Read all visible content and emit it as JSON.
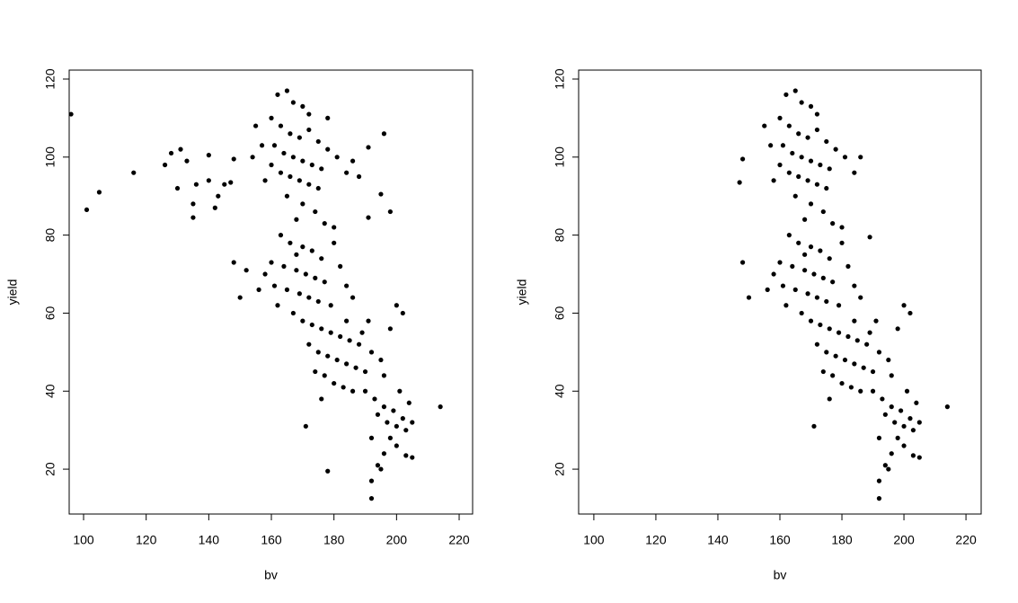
{
  "chart_data": [
    {
      "type": "scatter",
      "xlabel": "bv",
      "ylabel": "yield",
      "color": "#000000",
      "xlim": [
        95.4,
        224.3
      ],
      "ylim": [
        8.5,
        122.3
      ],
      "xticks": [
        100,
        120,
        140,
        160,
        180,
        200,
        220
      ],
      "yticks": [
        20,
        40,
        60,
        80,
        100,
        120
      ],
      "x": [
        96,
        101,
        105,
        116,
        126,
        128,
        130,
        131,
        133,
        135,
        135,
        136,
        140,
        140,
        142,
        143,
        145,
        147,
        148,
        148,
        150,
        152,
        154,
        214,
        192,
        192,
        178,
        194,
        195,
        196,
        198,
        195,
        191,
        191,
        162,
        165,
        167,
        170,
        172,
        160,
        163,
        166,
        169,
        172,
        175,
        178,
        161,
        164,
        167,
        170,
        173,
        176,
        163,
        166,
        169,
        172,
        175,
        160,
        181,
        184,
        158,
        165,
        170,
        174,
        168,
        177,
        180,
        186,
        188,
        178,
        155,
        157,
        163,
        166,
        170,
        173,
        176,
        160,
        164,
        168,
        171,
        174,
        177,
        161,
        165,
        169,
        172,
        175,
        179,
        156,
        158,
        182,
        167,
        170,
        173,
        184,
        186,
        162,
        168,
        180,
        176,
        179,
        182,
        185,
        188,
        172,
        175,
        178,
        181,
        184,
        187,
        190,
        174,
        177,
        180,
        183,
        186,
        189,
        192,
        195,
        198,
        200,
        202,
        176,
        171,
        184,
        191,
        196,
        190,
        193,
        196,
        199,
        202,
        194,
        197,
        200,
        203,
        205,
        198,
        200,
        192,
        204,
        201,
        196,
        203,
        205
      ],
      "y": [
        111,
        86.5,
        91,
        96,
        98,
        101,
        92,
        102,
        99,
        84.5,
        88,
        93,
        100.5,
        94,
        87,
        90,
        93,
        93.5,
        99.5,
        73,
        64,
        71,
        100,
        36,
        12.5,
        17,
        19.5,
        21,
        20,
        106,
        86,
        90.5,
        102.5,
        84.5,
        116,
        117,
        114,
        113,
        111,
        110,
        108,
        106,
        105,
        107,
        104,
        102,
        103,
        101,
        100,
        99,
        98,
        97,
        96,
        95,
        94,
        93,
        92,
        98,
        100,
        96,
        94,
        90,
        88,
        86,
        84,
        83,
        82,
        99,
        95,
        110,
        108,
        103,
        80,
        78,
        77,
        76,
        74,
        73,
        72,
        71,
        70,
        69,
        68,
        67,
        66,
        65,
        64,
        63,
        62,
        66,
        70,
        72,
        60,
        58,
        57,
        67,
        64,
        62,
        75,
        78,
        56,
        55,
        54,
        53,
        52,
        52,
        50,
        49,
        48,
        47,
        46,
        45,
        45,
        44,
        42,
        41,
        40,
        55,
        50,
        48,
        56,
        62,
        60,
        38,
        31,
        58,
        58,
        44,
        40,
        38,
        36,
        35,
        33,
        34,
        32,
        31,
        30,
        32,
        28,
        26,
        28,
        37,
        40,
        24,
        23.5,
        23
      ]
    },
    {
      "type": "scatter",
      "xlabel": "bv",
      "ylabel": "yield",
      "color": "#000000",
      "xlim": [
        95.1,
        224.9
      ],
      "ylim": [
        8.5,
        122.3
      ],
      "xticks": [
        100,
        120,
        140,
        160,
        180,
        200,
        220
      ],
      "yticks": [
        20,
        40,
        60,
        80,
        100,
        120
      ],
      "x": [
        147,
        148,
        148,
        150,
        214,
        192,
        192,
        194,
        195,
        189,
        186,
        162,
        165,
        167,
        170,
        172,
        160,
        163,
        166,
        169,
        172,
        175,
        178,
        161,
        164,
        167,
        170,
        173,
        176,
        163,
        166,
        169,
        172,
        175,
        160,
        181,
        184,
        158,
        165,
        170,
        174,
        168,
        177,
        180,
        155,
        157,
        163,
        166,
        170,
        173,
        176,
        160,
        164,
        168,
        171,
        174,
        177,
        161,
        165,
        169,
        172,
        175,
        179,
        156,
        158,
        182,
        167,
        170,
        173,
        184,
        186,
        162,
        168,
        180,
        176,
        179,
        182,
        185,
        188,
        172,
        175,
        178,
        181,
        184,
        187,
        190,
        174,
        177,
        180,
        183,
        186,
        189,
        192,
        195,
        198,
        200,
        202,
        176,
        171,
        184,
        191,
        196,
        190,
        193,
        196,
        199,
        202,
        194,
        197,
        200,
        203,
        205,
        198,
        200,
        192,
        204,
        201,
        196,
        203,
        205
      ],
      "y": [
        93.5,
        99.5,
        73,
        64,
        36,
        12.5,
        17,
        21,
        20,
        79.5,
        100,
        116,
        117,
        114,
        113,
        111,
        110,
        108,
        106,
        105,
        107,
        104,
        102,
        103,
        101,
        100,
        99,
        98,
        97,
        96,
        95,
        94,
        93,
        92,
        98,
        100,
        96,
        94,
        90,
        88,
        86,
        84,
        83,
        82,
        108,
        103,
        80,
        78,
        77,
        76,
        74,
        73,
        72,
        71,
        70,
        69,
        68,
        67,
        66,
        65,
        64,
        63,
        62,
        66,
        70,
        72,
        60,
        58,
        57,
        67,
        64,
        62,
        75,
        78,
        56,
        55,
        54,
        53,
        52,
        52,
        50,
        49,
        48,
        47,
        46,
        45,
        45,
        44,
        42,
        41,
        40,
        55,
        50,
        48,
        56,
        62,
        60,
        38,
        31,
        58,
        58,
        44,
        40,
        38,
        36,
        35,
        33,
        34,
        32,
        31,
        30,
        32,
        28,
        26,
        28,
        37,
        40,
        24,
        23.5,
        23
      ]
    }
  ]
}
